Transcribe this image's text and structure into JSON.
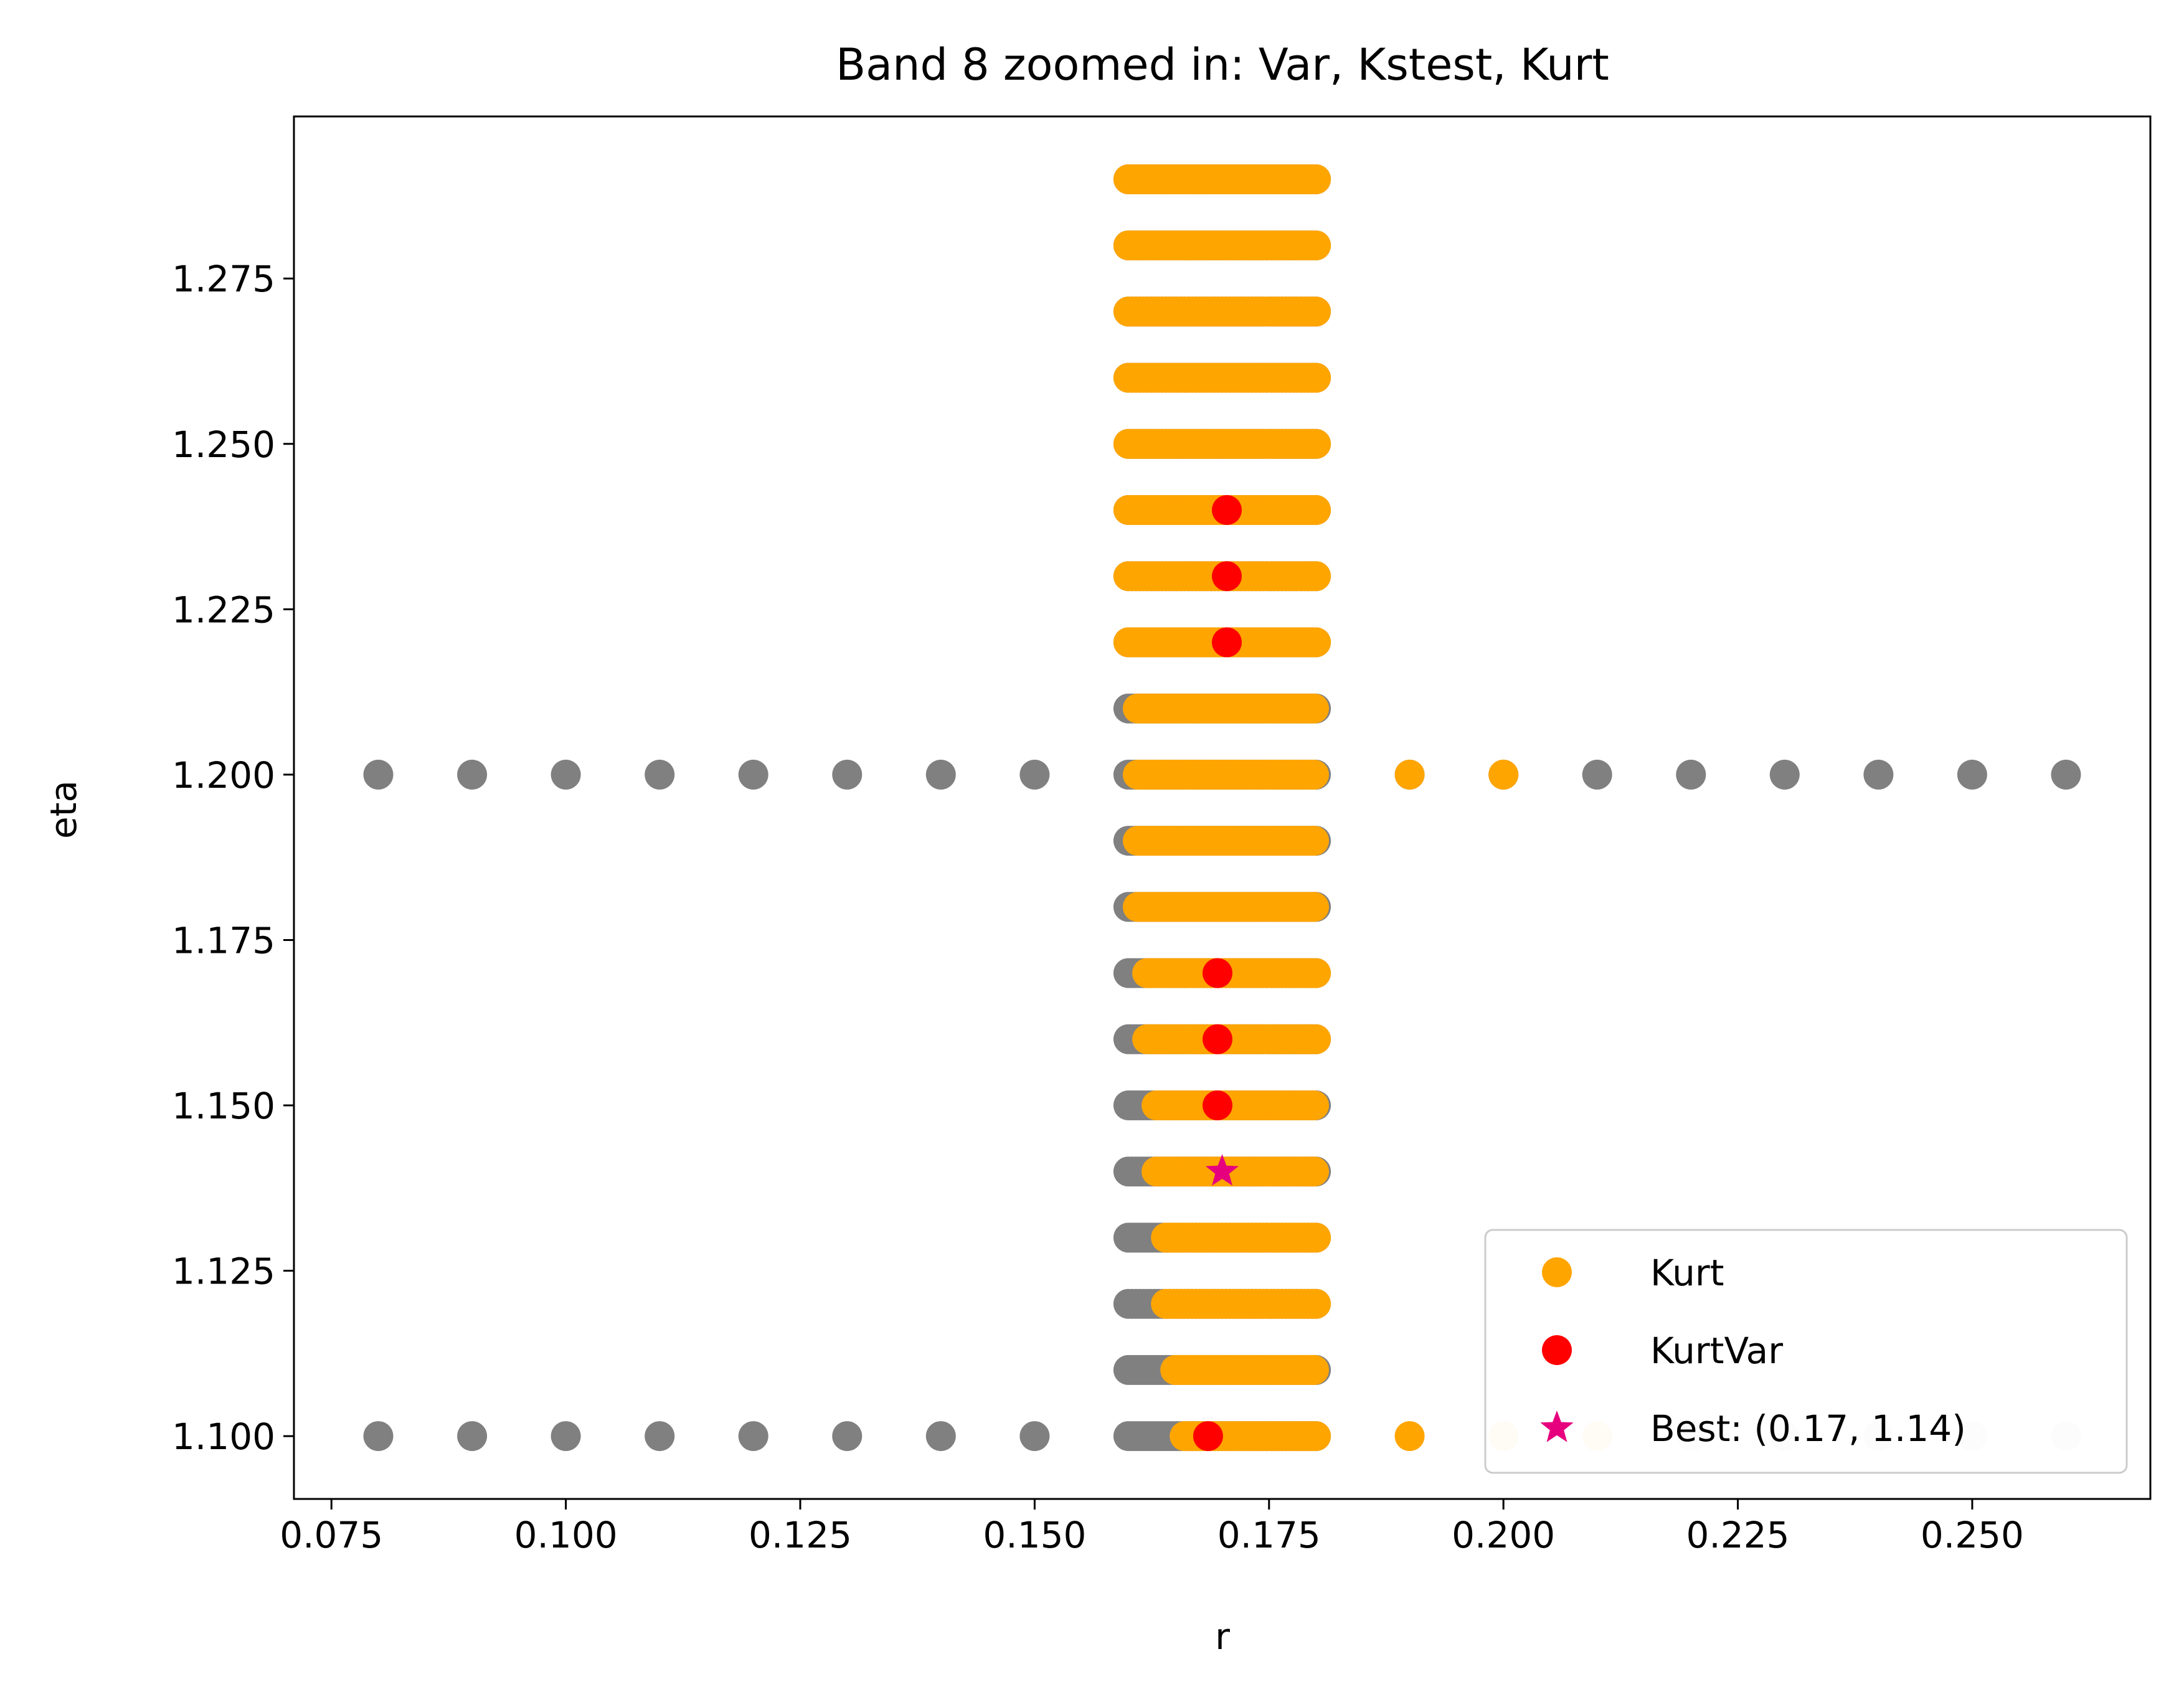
{
  "chart_data": {
    "type": "scatter",
    "title": "Band 8 zoomed in: Var, Kstest, Kurt",
    "xlabel": "r",
    "ylabel": "eta",
    "xlim": [
      0.071,
      0.269
    ],
    "ylim": [
      1.0905,
      1.2995
    ],
    "xticks": [
      "0.075",
      "0.100",
      "0.125",
      "0.150",
      "0.175",
      "0.200",
      "0.225",
      "0.250"
    ],
    "yticks": [
      "1.100",
      "1.125",
      "1.150",
      "1.175",
      "1.200",
      "1.225",
      "1.250",
      "1.275"
    ],
    "grid": false,
    "legend_position": "lower right",
    "colors": {
      "grid_points": "#808080",
      "kurt": "#FFA500",
      "kurtvar": "#FF0000",
      "best": "#E6007E",
      "faded_kurt": "#FFEBCC",
      "faded_grid": "#EFEFEF"
    },
    "grid_points": {
      "description_rows": "eta values 1.10..1.29 step 0.01 in dense block r 0.160-0.180",
      "dense_block_r": [
        0.16,
        0.18
      ],
      "sparse_rows_eta": [
        1.1,
        1.2
      ],
      "sparse_r": [
        0.08,
        0.09,
        0.1,
        0.11,
        0.12,
        0.13,
        0.14,
        0.15,
        0.19,
        0.2,
        0.21,
        0.22,
        0.23,
        0.24,
        0.25,
        0.26
      ]
    },
    "series": [
      {
        "name": "Kurt",
        "rows": [
          {
            "eta": 1.29,
            "r_from": 0.16,
            "r_to": 0.18
          },
          {
            "eta": 1.28,
            "r_from": 0.16,
            "r_to": 0.18
          },
          {
            "eta": 1.27,
            "r_from": 0.16,
            "r_to": 0.18
          },
          {
            "eta": 1.26,
            "r_from": 0.16,
            "r_to": 0.18
          },
          {
            "eta": 1.25,
            "r_from": 0.16,
            "r_to": 0.18
          },
          {
            "eta": 1.24,
            "r_from": 0.16,
            "r_to": 0.18
          },
          {
            "eta": 1.23,
            "r_from": 0.16,
            "r_to": 0.18
          },
          {
            "eta": 1.22,
            "r_from": 0.16,
            "r_to": 0.18
          },
          {
            "eta": 1.21,
            "r_from": 0.161,
            "r_to": 0.18
          },
          {
            "eta": 1.2,
            "r_from": 0.161,
            "r_to": 0.18
          },
          {
            "eta": 1.19,
            "r_from": 0.161,
            "r_to": 0.18
          },
          {
            "eta": 1.18,
            "r_from": 0.161,
            "r_to": 0.18
          },
          {
            "eta": 1.17,
            "r_from": 0.162,
            "r_to": 0.18
          },
          {
            "eta": 1.16,
            "r_from": 0.162,
            "r_to": 0.18
          },
          {
            "eta": 1.15,
            "r_from": 0.163,
            "r_to": 0.18
          },
          {
            "eta": 1.14,
            "r_from": 0.163,
            "r_to": 0.18
          },
          {
            "eta": 1.13,
            "r_from": 0.164,
            "r_to": 0.18
          },
          {
            "eta": 1.12,
            "r_from": 0.164,
            "r_to": 0.18
          },
          {
            "eta": 1.11,
            "r_from": 0.165,
            "r_to": 0.18
          },
          {
            "eta": 1.1,
            "r_from": 0.166,
            "r_to": 0.18
          }
        ],
        "extra_points": [
          {
            "r": 0.19,
            "eta": 1.2
          },
          {
            "r": 0.2,
            "eta": 1.2
          },
          {
            "r": 0.19,
            "eta": 1.1
          }
        ]
      },
      {
        "name": "KurtVar",
        "points": [
          {
            "r": 0.1705,
            "eta": 1.24
          },
          {
            "r": 0.1705,
            "eta": 1.23
          },
          {
            "r": 0.1705,
            "eta": 1.22
          },
          {
            "r": 0.1695,
            "eta": 1.17
          },
          {
            "r": 0.1695,
            "eta": 1.16
          },
          {
            "r": 0.1695,
            "eta": 1.15
          },
          {
            "r": 0.1685,
            "eta": 1.1
          }
        ]
      },
      {
        "name": "Best: (0.17, 1.14)",
        "points": [
          {
            "r": 0.17,
            "eta": 1.14
          }
        ]
      }
    ],
    "faded_points_eta_1_10": {
      "kurt_light": [
        0.2,
        0.21
      ],
      "grey_light": [
        0.22,
        0.23,
        0.24,
        0.25,
        0.26
      ]
    },
    "legend": [
      {
        "label": "Kurt",
        "marker": "circle",
        "color": "#FFA500"
      },
      {
        "label": "KurtVar",
        "marker": "circle",
        "color": "#FF0000"
      },
      {
        "label": "Best: (0.17, 1.14)",
        "marker": "star",
        "color": "#E6007E"
      }
    ]
  }
}
